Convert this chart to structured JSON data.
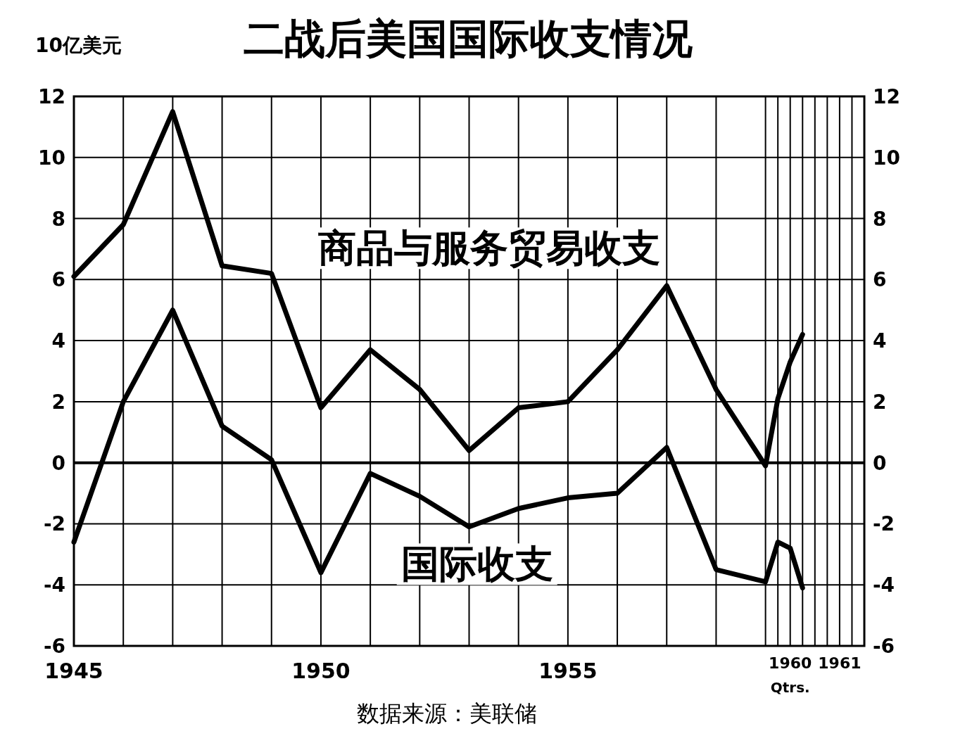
{
  "chart_data": {
    "type": "line",
    "title": "二战后美国国际收支情况",
    "ylabel": "10亿美元",
    "x": [
      1945,
      1946,
      1947,
      1948,
      1949,
      1950,
      1951,
      1952,
      1953,
      1954,
      1955,
      1956,
      1957,
      1958,
      1959,
      1959.25,
      1959.5,
      1959.75
    ],
    "series": [
      {
        "name": "商品与服务贸易收支",
        "color": "#000000",
        "values": [
          6.1,
          7.8,
          11.5,
          6.45,
          6.2,
          1.8,
          3.7,
          2.4,
          0.4,
          1.8,
          2.0,
          3.7,
          5.8,
          2.4,
          -0.1,
          2.1,
          3.3,
          4.2
        ]
      },
      {
        "name": "国际收支",
        "color": "#000000",
        "values": [
          -2.6,
          2.0,
          5.0,
          1.2,
          0.1,
          -3.6,
          -0.35,
          -1.1,
          -2.1,
          -1.5,
          -1.15,
          -1.0,
          0.5,
          -3.5,
          -3.9,
          -2.6,
          -2.8,
          -4.1
        ]
      }
    ],
    "xlim": [
      1945,
      1961
    ],
    "xticks": [
      1945,
      {
        "value": 1946,
        "label": null
      },
      {
        "value": 1947,
        "label": null
      },
      {
        "value": 1948,
        "label": null
      },
      {
        "value": 1949,
        "label": null
      },
      1950,
      {
        "value": 1951,
        "label": null
      },
      {
        "value": 1952,
        "label": null
      },
      {
        "value": 1953,
        "label": null
      },
      {
        "value": 1954,
        "label": null
      },
      1955,
      {
        "value": 1956,
        "label": null
      },
      {
        "value": 1957,
        "label": null
      },
      {
        "value": 1958,
        "label": null
      },
      {
        "value": 1959,
        "label": null
      },
      {
        "value": 1959.25,
        "label": null
      },
      {
        "value": 1959.5,
        "label": "1960"
      },
      {
        "value": 1959.75,
        "label": null
      },
      {
        "value": 1960,
        "label": null
      },
      {
        "value": 1960.25,
        "label": null
      },
      {
        "value": 1960.5,
        "label": "1961"
      },
      {
        "value": 1960.75,
        "label": null
      }
    ],
    "ylim": [
      -6,
      12
    ],
    "yticks": [
      -6,
      -4,
      -2,
      0,
      2,
      4,
      6,
      8,
      10,
      12
    ],
    "y2lim": [
      -6,
      12
    ],
    "y2ticks": [
      -6,
      -4,
      -2,
      0,
      2,
      4,
      6,
      8,
      10,
      12
    ],
    "ref_lines": [
      {
        "axis": "y",
        "value": 0,
        "color": "#000000"
      }
    ],
    "grid": true,
    "legend": false,
    "marker": "none",
    "line_style": "solid",
    "annotations": [
      "Qtrs.",
      "数据来源：美联储"
    ]
  }
}
